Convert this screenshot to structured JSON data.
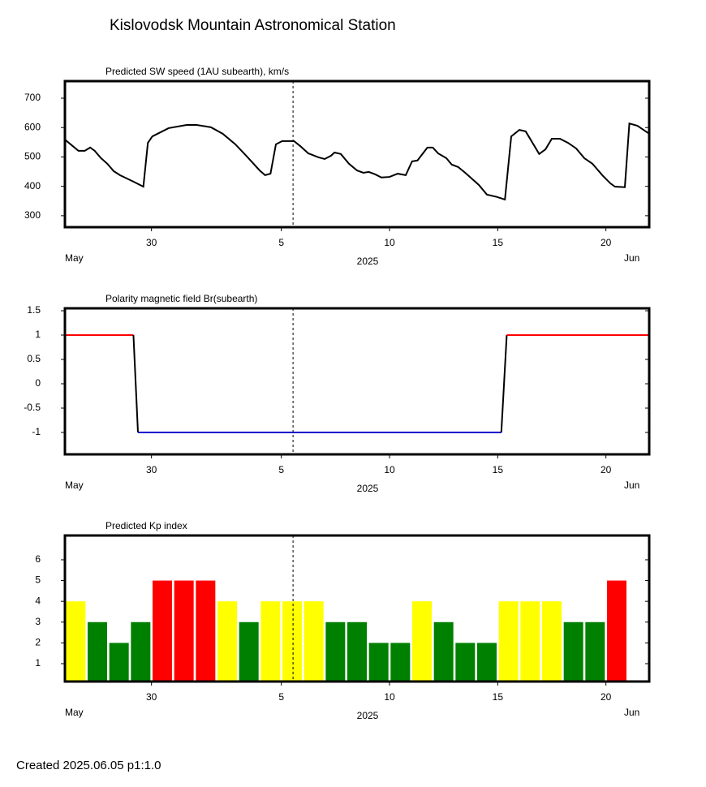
{
  "title": "Kislovodsk Mountain Astronomical Station",
  "footer": "Created  2025.06.05    p1:1.0",
  "chart_data": [
    {
      "type": "line",
      "title": "Predicted SW speed (1AU subearth), km/s",
      "x": [
        "2025-05-26T00:00",
        "2025-05-26T15:00",
        "2025-05-26T22:00",
        "2025-05-27T04:00",
        "2025-05-27T09:00",
        "2025-05-27T16:00",
        "2025-05-27T23:00",
        "2025-05-28T06:00",
        "2025-05-28T13:00",
        "2025-05-29T04:00",
        "2025-05-29T15:00",
        "2025-05-29T20:00",
        "2025-05-30T01:00",
        "2025-05-30T19:00",
        "2025-05-31T15:00",
        "2025-06-01T02:00",
        "2025-06-01T18:00",
        "2025-06-02T07:00",
        "2025-06-02T21:00",
        "2025-06-03T10:00",
        "2025-06-04T00:00",
        "2025-06-04T06:00",
        "2025-06-04T12:00",
        "2025-06-04T18:00",
        "2025-06-05T01:00",
        "2025-06-05T14:00",
        "2025-06-05T21:00",
        "2025-06-06T06:00",
        "2025-06-06T17:00",
        "2025-06-07T00:00",
        "2025-06-07T07:00",
        "2025-06-07T11:00",
        "2025-06-07T18:00",
        "2025-06-08T03:00",
        "2025-06-08T12:00",
        "2025-06-08T19:00",
        "2025-06-09T01:00",
        "2025-06-09T08:00",
        "2025-06-09T15:00",
        "2025-06-10T00:00",
        "2025-06-10T09:00",
        "2025-06-10T18:00",
        "2025-06-11T01:00",
        "2025-06-11T07:00",
        "2025-06-11T18:00",
        "2025-06-12T00:00",
        "2025-06-12T06:00",
        "2025-06-12T15:00",
        "2025-06-12T21:00",
        "2025-06-13T04:00",
        "2025-06-13T12:00",
        "2025-06-14T03:00",
        "2025-06-14T12:00",
        "2025-06-14T23:00",
        "2025-06-15T08:00",
        "2025-06-15T15:00",
        "2025-06-16T00:00",
        "2025-06-16T07:00",
        "2025-06-16T22:00",
        "2025-06-17T05:00",
        "2025-06-17T12:00",
        "2025-06-17T21:00",
        "2025-06-18T06:00",
        "2025-06-18T15:00",
        "2025-06-19T00:00",
        "2025-06-19T09:00",
        "2025-06-19T20:00",
        "2025-06-20T05:00",
        "2025-06-20T10:00",
        "2025-06-20T21:00",
        "2025-06-21T02:00",
        "2025-06-21T11:00",
        "2025-06-22T00:00"
      ],
      "values": [
        559,
        521,
        521,
        532,
        521,
        496,
        477,
        452,
        438,
        416,
        399,
        548,
        570,
        598,
        609,
        609,
        601,
        579,
        543,
        501,
        454,
        438,
        443,
        543,
        554,
        554,
        537,
        512,
        499,
        493,
        504,
        515,
        510,
        477,
        454,
        446,
        449,
        441,
        430,
        432,
        443,
        438,
        485,
        488,
        532,
        532,
        512,
        496,
        474,
        466,
        446,
        405,
        372,
        364,
        355,
        570,
        592,
        587,
        510,
        526,
        562,
        562,
        548,
        529,
        496,
        477,
        438,
        410,
        399,
        397,
        614,
        606,
        579
      ],
      "color": "#000000",
      "ylim": [
        261,
        758
      ],
      "yticks": [
        300,
        400,
        500,
        600,
        700
      ],
      "xlim": [
        "2025-05-26",
        "2025-06-22"
      ],
      "xticks": [
        {
          "value": "2025-05-30",
          "label": "30"
        },
        {
          "value": "2025-06-05",
          "label": "5"
        },
        {
          "value": "2025-06-10",
          "label": "10"
        },
        {
          "value": "2025-06-15",
          "label": "15"
        },
        {
          "value": "2025-06-20",
          "label": "20"
        }
      ],
      "x_months": [
        "May",
        "Jun"
      ],
      "xlabel": "2025",
      "marker_x": "2025-06-05T13:00"
    },
    {
      "type": "step",
      "title": "Polarity magnetic field  Br(subearth)",
      "x": [
        "2025-05-26T00:00",
        "2025-05-29T04:00",
        "2025-05-29T09:00",
        "2025-06-15T04:00",
        "2025-06-15T10:00",
        "2025-06-22T00:00"
      ],
      "values": [
        1,
        1,
        -1,
        -1,
        1,
        1
      ],
      "color": "#000000",
      "pos_color": "#ff0000",
      "neg_color": "#0000cc",
      "ylim": [
        -1.45,
        1.55
      ],
      "yticks": [
        -1,
        -0.5,
        0,
        0.5,
        1,
        1.5
      ],
      "xlim": [
        "2025-05-26",
        "2025-06-22"
      ],
      "xticks": [
        {
          "value": "2025-05-30",
          "label": "30"
        },
        {
          "value": "2025-06-05",
          "label": "5"
        },
        {
          "value": "2025-06-10",
          "label": "10"
        },
        {
          "value": "2025-06-15",
          "label": "15"
        },
        {
          "value": "2025-06-20",
          "label": "20"
        }
      ],
      "x_months": [
        "May",
        "Jun"
      ],
      "xlabel": "2025",
      "marker_x": "2025-06-05T13:00"
    },
    {
      "type": "bar",
      "title": "Predicted Kp index",
      "x": [
        "2025-05-26",
        "2025-05-27",
        "2025-05-28",
        "2025-05-29",
        "2025-05-30",
        "2025-05-31",
        "2025-06-01",
        "2025-06-02",
        "2025-06-03",
        "2025-06-04",
        "2025-06-05",
        "2025-06-06",
        "2025-06-07",
        "2025-06-08",
        "2025-06-09",
        "2025-06-10",
        "2025-06-11",
        "2025-06-12",
        "2025-06-13",
        "2025-06-14",
        "2025-06-15",
        "2025-06-16",
        "2025-06-17",
        "2025-06-18",
        "2025-06-19",
        "2025-06-20"
      ],
      "values": [
        4,
        3,
        2,
        3,
        5,
        5,
        5,
        4,
        3,
        4,
        4,
        4,
        3,
        3,
        2,
        2,
        4,
        3,
        2,
        2,
        4,
        4,
        4,
        3,
        3,
        5
      ],
      "colors": [
        "#ffff00",
        "#008000",
        "#008000",
        "#008000",
        "#ff0000",
        "#ff0000",
        "#ff0000",
        "#ffff00",
        "#008000",
        "#ffff00",
        "#ffff00",
        "#ffff00",
        "#008000",
        "#008000",
        "#008000",
        "#008000",
        "#ffff00",
        "#008000",
        "#008000",
        "#008000",
        "#ffff00",
        "#ffff00",
        "#ffff00",
        "#008000",
        "#008000",
        "#ff0000"
      ],
      "ylim": [
        0.14,
        7.17
      ],
      "yticks": [
        1,
        2,
        3,
        4,
        5,
        6
      ],
      "xlim": [
        "2025-05-26",
        "2025-06-22"
      ],
      "xticks": [
        {
          "value": "2025-05-30",
          "label": "30"
        },
        {
          "value": "2025-06-05",
          "label": "5"
        },
        {
          "value": "2025-06-10",
          "label": "10"
        },
        {
          "value": "2025-06-15",
          "label": "15"
        },
        {
          "value": "2025-06-20",
          "label": "20"
        }
      ],
      "x_months": [
        "May",
        "Jun"
      ],
      "xlabel": "2025",
      "marker_x": "2025-06-05T13:00"
    }
  ]
}
